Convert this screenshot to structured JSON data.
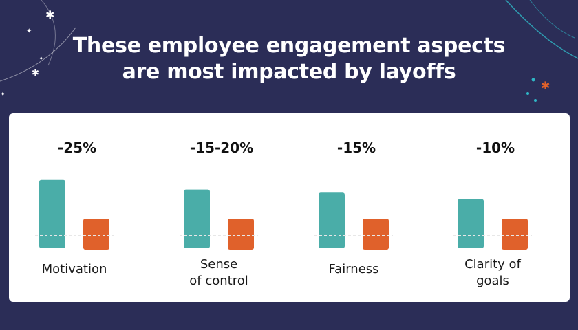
{
  "title_lines": [
    "These employee engagement aspects",
    "are most impacted by layoffs"
  ],
  "colors": {
    "background": "#2b2d57",
    "card": "#ffffff",
    "teal": "#4aada8",
    "orange": "#e0612b",
    "accent_decor": "#2fb7c6"
  },
  "chart_data": {
    "type": "bar",
    "title": "These employee engagement aspects are most impacted by layoffs",
    "categories": [
      "Motivation",
      "Sense of control",
      "Fairness",
      "Clarity of goals"
    ],
    "category_lines": [
      [
        "Motivation"
      ],
      [
        "Sense",
        "of control"
      ],
      [
        "Fairness"
      ],
      [
        "Clarity of",
        "goals"
      ]
    ],
    "change_labels": [
      "-25%",
      "-15-20%",
      "-15%",
      "-10%"
    ],
    "change_values": [
      -25,
      -17.5,
      -15,
      -10
    ],
    "grid": false,
    "legend": "none"
  }
}
